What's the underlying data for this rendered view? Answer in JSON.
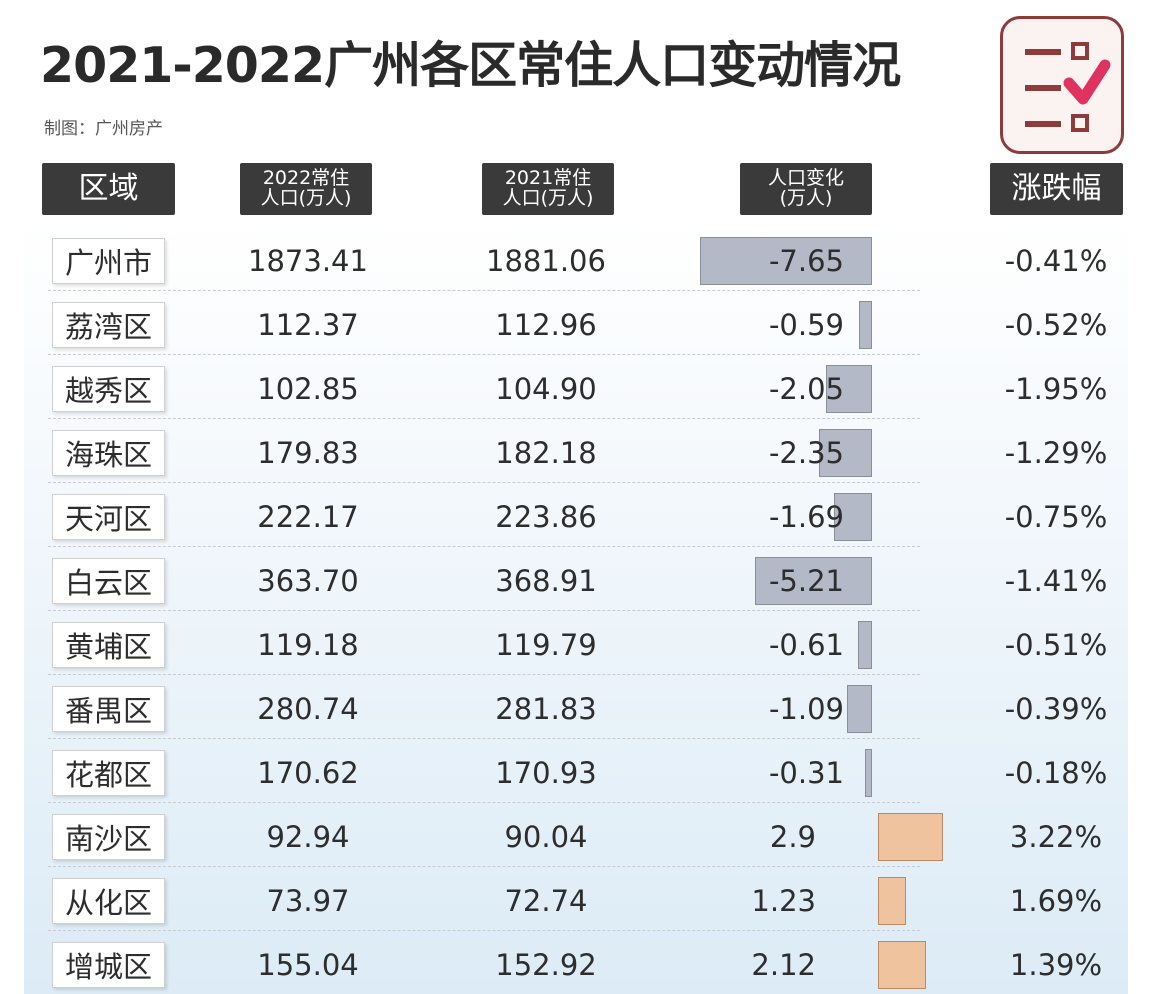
{
  "title": "2021-2022广州各区常住人口变动情况",
  "subtitle": "制图：广州房产",
  "logo_icon": "checklist-icon",
  "colors": {
    "header_bg": "#3a3a3a",
    "neg_bar": "#b3b9c6",
    "pos_bar": "#eec39d",
    "logo_border": "#8e3b3b",
    "check": "#e0325f"
  },
  "headers": {
    "region": "区域",
    "pop2022": [
      "2022常住",
      "人口(万人)"
    ],
    "pop2021": [
      "2021常住",
      "人口(万人)"
    ],
    "change": [
      "人口变化",
      "(万人)"
    ],
    "pct": "涨跌幅"
  },
  "chart_data": {
    "type": "table",
    "columns": [
      "区域",
      "2022常住人口(万人)",
      "2021常住人口(万人)",
      "人口变化(万人)",
      "涨跌幅"
    ],
    "rows": [
      {
        "region": "广州市",
        "pop2022": "1873.41",
        "pop2021": "1881.06",
        "change": "-7.65",
        "change_value": -7.65,
        "pct": "-0.41%"
      },
      {
        "region": "荔湾区",
        "pop2022": "112.37",
        "pop2021": "112.96",
        "change": "-0.59",
        "change_value": -0.59,
        "pct": "-0.52%"
      },
      {
        "region": "越秀区",
        "pop2022": "102.85",
        "pop2021": "104.90",
        "change": "-2.05",
        "change_value": -2.05,
        "pct": "-1.95%"
      },
      {
        "region": "海珠区",
        "pop2022": "179.83",
        "pop2021": "182.18",
        "change": "-2.35",
        "change_value": -2.35,
        "pct": "-1.29%"
      },
      {
        "region": "天河区",
        "pop2022": "222.17",
        "pop2021": "223.86",
        "change": "-1.69",
        "change_value": -1.69,
        "pct": "-0.75%"
      },
      {
        "region": "白云区",
        "pop2022": "363.70",
        "pop2021": "368.91",
        "change": "-5.21",
        "change_value": -5.21,
        "pct": "-1.41%"
      },
      {
        "region": "黄埔区",
        "pop2022": "119.18",
        "pop2021": "119.79",
        "change": "-0.61",
        "change_value": -0.61,
        "pct": "-0.51%"
      },
      {
        "region": "番禺区",
        "pop2022": "280.74",
        "pop2021": "281.83",
        "change": "-1.09",
        "change_value": -1.09,
        "pct": "-0.39%"
      },
      {
        "region": "花都区",
        "pop2022": "170.62",
        "pop2021": "170.93",
        "change": "-0.31",
        "change_value": -0.31,
        "pct": "-0.18%"
      },
      {
        "region": "南沙区",
        "pop2022": "92.94",
        "pop2021": "90.04",
        "change": "2.9",
        "change_value": 2.9,
        "pct": "3.22%"
      },
      {
        "region": "从化区",
        "pop2022": "73.97",
        "pop2021": "72.74",
        "change": "1.23",
        "change_value": 1.23,
        "pct": "1.69%"
      },
      {
        "region": "增城区",
        "pop2022": "155.04",
        "pop2021": "152.92",
        "change": "2.12",
        "change_value": 2.12,
        "pct": "1.39%"
      }
    ]
  }
}
